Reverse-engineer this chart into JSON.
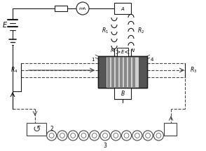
{
  "fig_width": 2.94,
  "fig_height": 2.15,
  "dpi": 100,
  "bg_color": "#ffffff",
  "lc": "#1a1a1a",
  "dc": "#444444",
  "labels": {
    "E_bat": "E",
    "mA": "mA",
    "R1": "$R_1$",
    "R2": "$R_2$",
    "R3": "$R_3$",
    "R4": "$R_4$",
    "A": "A",
    "M": "M",
    "N": "N",
    "E_mid": "E",
    "B": "B",
    "n1": "1",
    "n2": "2",
    "n3": "3",
    "n4": "4"
  }
}
